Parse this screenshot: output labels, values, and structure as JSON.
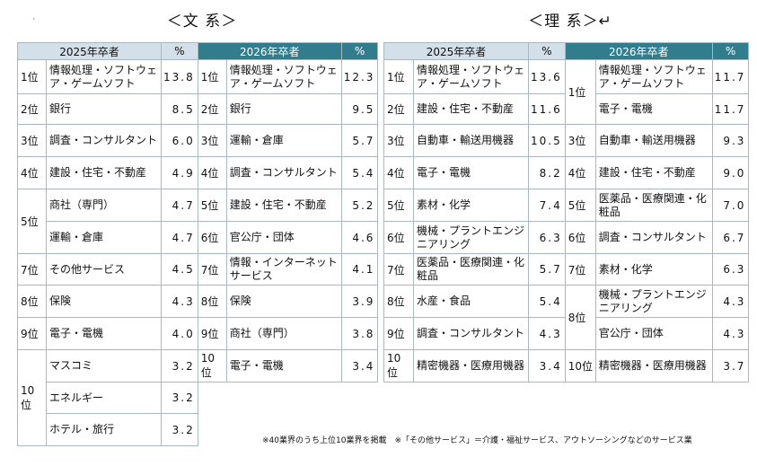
{
  "bunkei": {
    "title": "＜文 系＞",
    "header_2025": "2025年卒者",
    "header_2026": "2026年卒者",
    "pct_label": "%",
    "rows_2025": [
      {
        "rank": "1位",
        "industry": "情報処理・ソフトウェア・ゲームソフト",
        "pct": "13.8"
      },
      {
        "rank": "2位",
        "industry": "銀行",
        "pct": "8.5"
      },
      {
        "rank": "3位",
        "industry": "調査・コンサルタント",
        "pct": "6.0"
      },
      {
        "rank": "4位",
        "industry": "建設・住宅・不動産",
        "pct": "4.9"
      },
      {
        "rank": "5位",
        "industry": "商社（専門）",
        "pct": "4.7"
      },
      {
        "rank": "",
        "industry": "運輸・倉庫",
        "pct": "4.7"
      },
      {
        "rank": "7位",
        "industry": "その他サービス",
        "pct": "4.5"
      },
      {
        "rank": "8位",
        "industry": "保険",
        "pct": "4.3"
      },
      {
        "rank": "9位",
        "industry": "電子・電機",
        "pct": "4.0"
      },
      {
        "rank": "10位",
        "industry": "マスコミ",
        "pct": "3.2"
      },
      {
        "rank": "",
        "industry": "エネルギー",
        "pct": "3.2"
      },
      {
        "rank": "",
        "industry": "ホテル・旅行",
        "pct": "3.2"
      }
    ],
    "rows_2026": [
      {
        "rank": "1位",
        "industry": "情報処理・ソフトウェア・ゲームソフト",
        "pct": "12.3"
      },
      {
        "rank": "2位",
        "industry": "銀行",
        "pct": "9.5"
      },
      {
        "rank": "3位",
        "industry": "運輸・倉庫",
        "pct": "5.7"
      },
      {
        "rank": "4位",
        "industry": "調査・コンサルタント",
        "pct": "5.4"
      },
      {
        "rank": "5位",
        "industry": "建設・住宅・不動産",
        "pct": "5.2"
      },
      {
        "rank": "6位",
        "industry": "官公庁・団体",
        "pct": "4.6"
      },
      {
        "rank": "7位",
        "industry": "情報・インターネットサービス",
        "pct": "4.1"
      },
      {
        "rank": "8位",
        "industry": "保険",
        "pct": "3.9"
      },
      {
        "rank": "9位",
        "industry": "商社（専門）",
        "pct": "3.8"
      },
      {
        "rank": "10位",
        "industry": "電子・電機",
        "pct": "3.4"
      }
    ]
  },
  "rikei": {
    "title": "＜理 系＞↵",
    "header_2025": "2025年卒者",
    "header_2026": "2026年卒者",
    "pct_label": "%",
    "rows_2025": [
      {
        "rank": "1位",
        "industry": "情報処理・ソフトウェア・ゲームソフト",
        "pct": "13.6"
      },
      {
        "rank": "2位",
        "industry": "建設・住宅・不動産",
        "pct": "11.6"
      },
      {
        "rank": "3位",
        "industry": "自動車・輸送用機器",
        "pct": "10.5"
      },
      {
        "rank": "4位",
        "industry": "電子・電機",
        "pct": "8.2"
      },
      {
        "rank": "5位",
        "industry": "素材・化学",
        "pct": "7.4"
      },
      {
        "rank": "6位",
        "industry": "機械・プラントエンジニアリング",
        "pct": "6.3"
      },
      {
        "rank": "7位",
        "industry": "医薬品・医療関連・化粧品",
        "pct": "5.7"
      },
      {
        "rank": "8位",
        "industry": "水産・食品",
        "pct": "5.4"
      },
      {
        "rank": "9位",
        "industry": "調査・コンサルタント",
        "pct": "4.3"
      },
      {
        "rank": "10位",
        "industry": "精密機器・医療用機器",
        "pct": "3.4"
      }
    ],
    "rows_2026": [
      {
        "rank": "1位",
        "industry": "情報処理・ソフトウェア・ゲームソフト",
        "pct": "11.7"
      },
      {
        "rank": "",
        "industry": "電子・電機",
        "pct": "11.7"
      },
      {
        "rank": "3位",
        "industry": "自動車・輸送用機器",
        "pct": "9.3"
      },
      {
        "rank": "4位",
        "industry": "建設・住宅・不動産",
        "pct": "9.0"
      },
      {
        "rank": "5位",
        "industry": "医薬品・医療関連・化粧品",
        "pct": "7.0"
      },
      {
        "rank": "6位",
        "industry": "調査・コンサルタント",
        "pct": "6.7"
      },
      {
        "rank": "7位",
        "industry": "素材・化学",
        "pct": "6.3"
      },
      {
        "rank": "8位",
        "industry": "機械・プラントエンジニアリング",
        "pct": "4.3"
      },
      {
        "rank": "",
        "industry": "官公庁・団体",
        "pct": "4.3"
      },
      {
        "rank": "10位",
        "industry": "精密機器・医療用機器",
        "pct": "3.7"
      }
    ]
  },
  "footnote": "※40業界のうち上位10業界を掲載　※「その他サービス」＝介護・福祉サービス、アウトソーシングなどのサービス業"
}
